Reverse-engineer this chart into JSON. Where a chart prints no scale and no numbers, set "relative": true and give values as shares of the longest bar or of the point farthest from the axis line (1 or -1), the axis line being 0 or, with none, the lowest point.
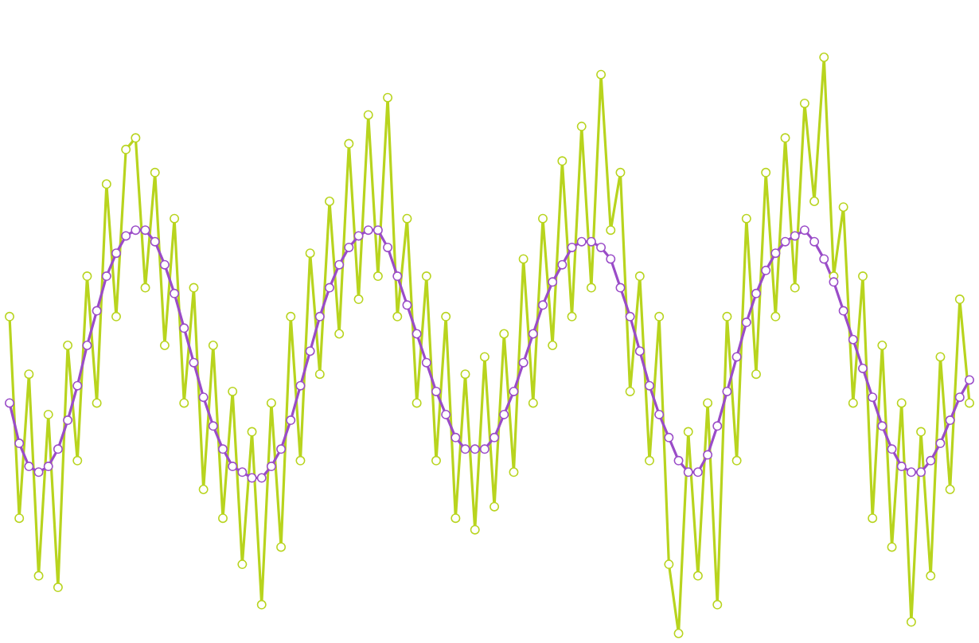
{
  "chart_data": {
    "type": "line",
    "relative": true,
    "marker": "circle",
    "line_style": "solid",
    "categories": [
      null,
      null,
      null,
      null,
      null,
      null,
      null,
      null,
      null,
      null,
      null,
      null,
      null,
      null,
      null,
      null,
      null,
      null,
      null,
      null,
      null,
      null,
      null,
      null,
      null,
      null,
      null,
      null,
      null,
      null,
      null,
      null,
      null,
      null,
      null,
      null,
      null,
      null,
      null,
      null,
      null,
      null,
      null,
      null,
      null,
      null,
      null,
      null,
      null,
      null,
      null,
      null,
      null,
      null,
      null,
      null,
      null,
      null,
      null,
      null,
      null,
      null,
      null,
      null,
      null,
      null,
      null,
      null,
      null,
      null,
      null,
      null,
      null,
      null,
      null,
      null,
      null,
      null,
      null,
      null,
      null,
      null,
      null,
      null,
      null,
      null,
      null,
      null,
      null,
      null,
      null,
      null,
      null,
      null,
      null,
      null,
      null,
      null,
      null,
      null
    ],
    "series": [
      {
        "color": "#b8d41e",
        "values": [
          0.55,
          0.2,
          0.45,
          0.1,
          0.38,
          0.08,
          0.5,
          0.3,
          0.62,
          0.4,
          0.78,
          0.55,
          0.84,
          0.86,
          0.6,
          0.8,
          0.5,
          0.72,
          0.4,
          0.6,
          0.25,
          0.5,
          0.2,
          0.42,
          0.12,
          0.35,
          0.05,
          0.4,
          0.15,
          0.55,
          0.3,
          0.66,
          0.45,
          0.75,
          0.52,
          0.85,
          0.58,
          0.9,
          0.62,
          0.93,
          0.55,
          0.72,
          0.4,
          0.62,
          0.3,
          0.55,
          0.2,
          0.45,
          0.18,
          0.48,
          0.22,
          0.52,
          0.28,
          0.65,
          0.4,
          0.72,
          0.5,
          0.82,
          0.55,
          0.88,
          0.6,
          0.97,
          0.7,
          0.8,
          0.42,
          0.62,
          0.3,
          0.55,
          0.12,
          0.0,
          0.35,
          0.1,
          0.4,
          0.05,
          0.55,
          0.3,
          0.72,
          0.45,
          0.8,
          0.55,
          0.86,
          0.6,
          0.92,
          0.75,
          1.0,
          0.62,
          0.74,
          0.4,
          0.62,
          0.2,
          0.5,
          0.15,
          0.4,
          0.02,
          0.35,
          0.1,
          0.48,
          0.25,
          0.58,
          0.4
        ]
      },
      {
        "color": "#9a4cc8",
        "values": [
          0.4,
          0.33,
          0.29,
          0.28,
          0.29,
          0.32,
          0.37,
          0.43,
          0.5,
          0.56,
          0.62,
          0.66,
          0.69,
          0.7,
          0.7,
          0.68,
          0.64,
          0.59,
          0.53,
          0.47,
          0.41,
          0.36,
          0.32,
          0.29,
          0.28,
          0.27,
          0.27,
          0.29,
          0.32,
          0.37,
          0.43,
          0.49,
          0.55,
          0.6,
          0.64,
          0.67,
          0.69,
          0.7,
          0.7,
          0.67,
          0.62,
          0.57,
          0.52,
          0.47,
          0.42,
          0.38,
          0.34,
          0.32,
          0.32,
          0.32,
          0.34,
          0.38,
          0.42,
          0.47,
          0.52,
          0.57,
          0.61,
          0.64,
          0.67,
          0.68,
          0.68,
          0.67,
          0.65,
          0.6,
          0.55,
          0.49,
          0.43,
          0.38,
          0.34,
          0.3,
          0.28,
          0.28,
          0.31,
          0.36,
          0.42,
          0.48,
          0.54,
          0.59,
          0.63,
          0.66,
          0.68,
          0.69,
          0.7,
          0.68,
          0.65,
          0.61,
          0.56,
          0.51,
          0.46,
          0.41,
          0.36,
          0.32,
          0.29,
          0.28,
          0.28,
          0.3,
          0.33,
          0.37,
          0.41,
          0.44
        ]
      }
    ]
  }
}
